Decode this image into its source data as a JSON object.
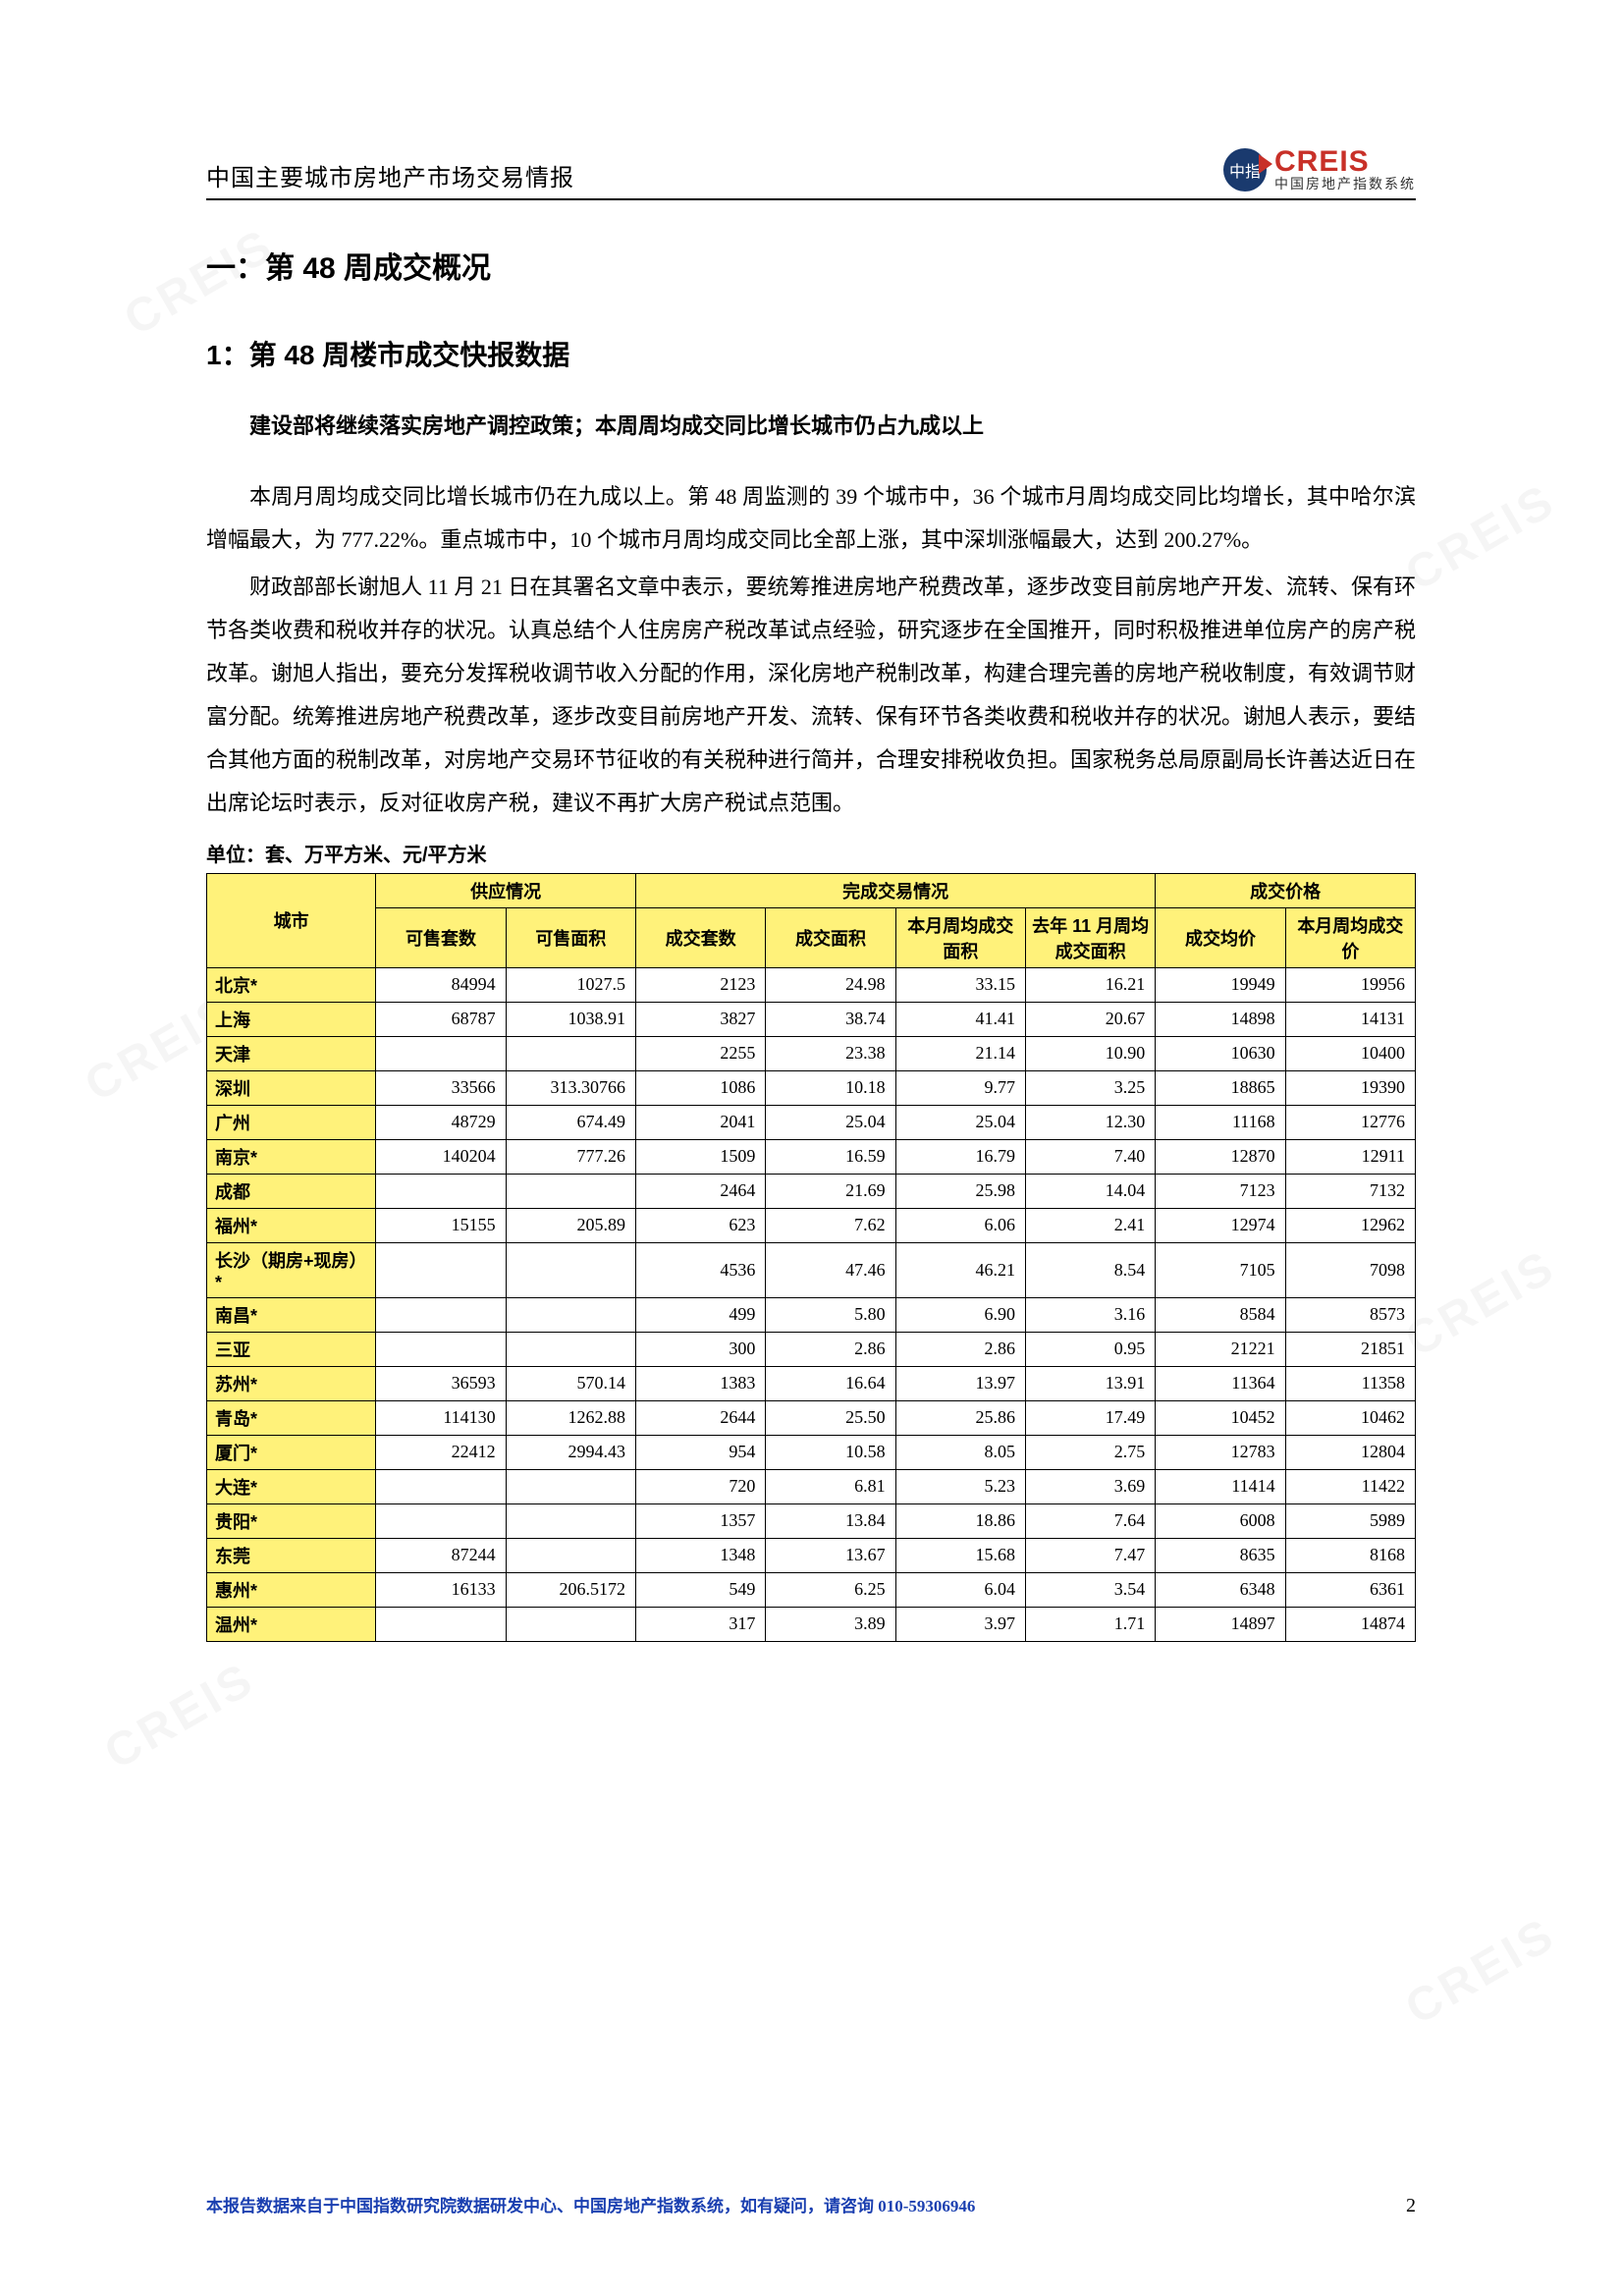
{
  "header": {
    "title": "中国主要城市房地产市场交易情报",
    "logo_main": "CREIS",
    "logo_sub": "中国房地产指数系统",
    "logo_badge": "中指"
  },
  "headings": {
    "h1": "一：第 48 周成交概况",
    "h2": "1：第 48 周楼市成交快报数据",
    "bold_line": "建设部将继续落实房地产调控政策；本周周均成交同比增长城市仍占九成以上"
  },
  "paragraphs": {
    "p1": "本周月周均成交同比增长城市仍在九成以上。第 48 周监测的 39 个城市中，36 个城市月周均成交同比均增长，其中哈尔滨增幅最大，为 777.22%。重点城市中，10 个城市月周均成交同比全部上涨，其中深圳涨幅最大，达到 200.27%。",
    "p2": "财政部部长谢旭人 11 月 21 日在其署名文章中表示，要统筹推进房地产税费改革，逐步改变目前房地产开发、流转、保有环节各类收费和税收并存的状况。认真总结个人住房房产税改革试点经验，研究逐步在全国推开，同时积极推进单位房产的房产税改革。谢旭人指出，要充分发挥税收调节收入分配的作用，深化房地产税制改革，构建合理完善的房地产税收制度，有效调节财富分配。统筹推进房地产税费改革，逐步改变目前房地产开发、流转、保有环节各类收费和税收并存的状况。谢旭人表示，要结合其他方面的税制改革，对房地产交易环节征收的有关税种进行简并，合理安排税收负担。国家税务总局原副局长许善达近日在出席论坛时表示，反对征收房产税，建议不再扩大房产税试点范围。"
  },
  "table": {
    "unit_line": "单位：套、万平方米、元/平方米",
    "group_headers": [
      "城市",
      "供应情况",
      "完成交易情况",
      "成交价格"
    ],
    "sub_headers": [
      "可售套数",
      "可售面积",
      "成交套数",
      "成交面积",
      "本月周均成交面积",
      "去年 11 月周均成交面积",
      "成交均价",
      "本月周均成交价"
    ],
    "header_colors": {
      "bg": "#fff27a",
      "border": "#000000"
    },
    "font": {
      "size_pt": 9,
      "family": "SimSun"
    },
    "rows": [
      {
        "city": "北京*",
        "v": [
          "84994",
          "1027.5",
          "2123",
          "24.98",
          "33.15",
          "16.21",
          "19949",
          "19956"
        ]
      },
      {
        "city": "上海",
        "v": [
          "68787",
          "1038.91",
          "3827",
          "38.74",
          "41.41",
          "20.67",
          "14898",
          "14131"
        ]
      },
      {
        "city": "天津",
        "v": [
          "",
          "",
          "2255",
          "23.38",
          "21.14",
          "10.90",
          "10630",
          "10400"
        ]
      },
      {
        "city": "深圳",
        "v": [
          "33566",
          "313.30766",
          "1086",
          "10.18",
          "9.77",
          "3.25",
          "18865",
          "19390"
        ]
      },
      {
        "city": "广州",
        "v": [
          "48729",
          "674.49",
          "2041",
          "25.04",
          "25.04",
          "12.30",
          "11168",
          "12776"
        ]
      },
      {
        "city": "南京*",
        "v": [
          "140204",
          "777.26",
          "1509",
          "16.59",
          "16.79",
          "7.40",
          "12870",
          "12911"
        ]
      },
      {
        "city": "成都",
        "v": [
          "",
          "",
          "2464",
          "21.69",
          "25.98",
          "14.04",
          "7123",
          "7132"
        ]
      },
      {
        "city": "福州*",
        "v": [
          "15155",
          "205.89",
          "623",
          "7.62",
          "6.06",
          "2.41",
          "12974",
          "12962"
        ]
      },
      {
        "city": "长沙（期房+现房）*",
        "v": [
          "",
          "",
          "4536",
          "47.46",
          "46.21",
          "8.54",
          "7105",
          "7098"
        ]
      },
      {
        "city": "南昌*",
        "v": [
          "",
          "",
          "499",
          "5.80",
          "6.90",
          "3.16",
          "8584",
          "8573"
        ]
      },
      {
        "city": "三亚",
        "v": [
          "",
          "",
          "300",
          "2.86",
          "2.86",
          "0.95",
          "21221",
          "21851"
        ]
      },
      {
        "city": "苏州*",
        "v": [
          "36593",
          "570.14",
          "1383",
          "16.64",
          "13.97",
          "13.91",
          "11364",
          "11358"
        ]
      },
      {
        "city": "青岛*",
        "v": [
          "114130",
          "1262.88",
          "2644",
          "25.50",
          "25.86",
          "17.49",
          "10452",
          "10462"
        ]
      },
      {
        "city": "厦门*",
        "v": [
          "22412",
          "2994.43",
          "954",
          "10.58",
          "8.05",
          "2.75",
          "12783",
          "12804"
        ]
      },
      {
        "city": "大连*",
        "v": [
          "",
          "",
          "720",
          "6.81",
          "5.23",
          "3.69",
          "11414",
          "11422"
        ]
      },
      {
        "city": "贵阳*",
        "v": [
          "",
          "",
          "1357",
          "13.84",
          "18.86",
          "7.64",
          "6008",
          "5989"
        ]
      },
      {
        "city": "东莞",
        "v": [
          "87244",
          "",
          "1348",
          "13.67",
          "15.68",
          "7.47",
          "8635",
          "8168"
        ]
      },
      {
        "city": "惠州*",
        "v": [
          "16133",
          "206.5172",
          "549",
          "6.25",
          "6.04",
          "3.54",
          "6348",
          "6361"
        ]
      },
      {
        "city": "温州*",
        "v": [
          "",
          "",
          "317",
          "3.89",
          "3.97",
          "1.71",
          "14897",
          "14874"
        ]
      }
    ]
  },
  "footer": {
    "text": "本报告数据来自于中国指数研究院数据研发中心、中国房地产指数系统，如有疑问，请咨询 010-59306946",
    "page": "2"
  },
  "watermark": {
    "text": "CREIS",
    "color": "rgba(0,0,0,0.04)"
  }
}
